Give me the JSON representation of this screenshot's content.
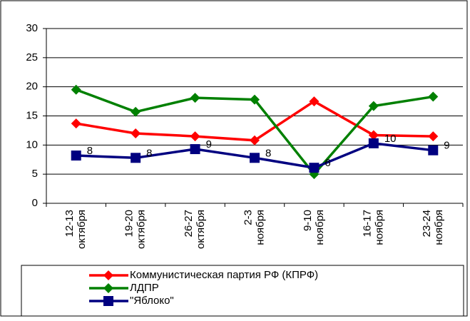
{
  "chart_data": {
    "type": "line",
    "categories": [
      "12-13 октября",
      "19-20 октября",
      "26-27 октября",
      "2-3 ноября",
      "9-10 ноября",
      "16-17 ноября",
      "23-24 ноября"
    ],
    "series": [
      {
        "name": "Коммунистическая партия РФ (КПРФ)",
        "color": "#ff0000",
        "marker": "diamond",
        "values": [
          13.7,
          12,
          11.5,
          10.8,
          17.5,
          11.7,
          11.5
        ]
      },
      {
        "name": "ЛДПР",
        "color": "#008000",
        "marker": "diamond",
        "values": [
          19.5,
          15.7,
          18.1,
          17.8,
          5,
          16.7,
          18.3
        ]
      },
      {
        "name": "\"Яблоко\"",
        "color": "#000080",
        "marker": "square",
        "values": [
          8.2,
          7.8,
          9.3,
          7.8,
          6.1,
          10.3,
          9.1
        ],
        "value_labels": [
          "8",
          "8",
          "9",
          "8",
          "6",
          "10",
          "9"
        ]
      }
    ],
    "ylim": [
      0,
      30
    ],
    "yticks": [
      0,
      5,
      10,
      15,
      20,
      25,
      30
    ],
    "grid": true
  }
}
